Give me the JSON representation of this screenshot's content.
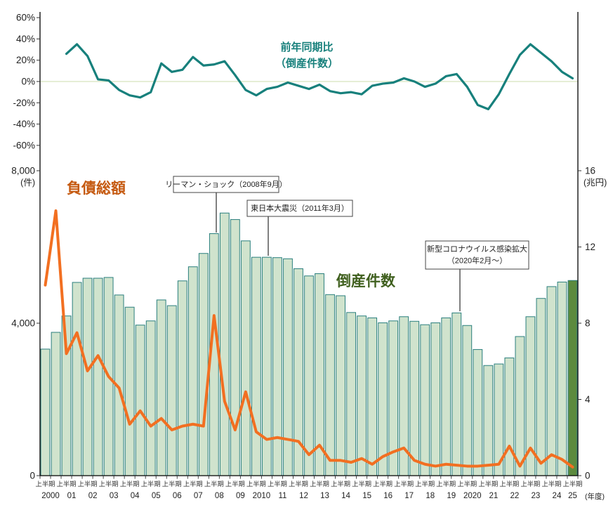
{
  "chart_data": {
    "type": "combo-bar-line",
    "description": "Half-yearly corporate bankruptcies (bars, left axis), total liabilities (orange line, right axis), and year-over-year change of bankruptcy count (teal line, percent axis)",
    "percent_axis": {
      "tick_labels": [
        "60%",
        "40%",
        "20%",
        "0%",
        "-20%",
        "-40%",
        "-60%"
      ],
      "tick_values": [
        60,
        40,
        20,
        0,
        -20,
        -40,
        -60
      ]
    },
    "count_axis": {
      "tick_labels": [
        "8,000",
        "4,000",
        "0"
      ],
      "tick_values": [
        8000,
        4000,
        0
      ],
      "unit_label": "(件)"
    },
    "trillion_axis": {
      "tick_labels": [
        "16",
        "12",
        "8",
        "4",
        "0"
      ],
      "tick_values": [
        16,
        12,
        8,
        4,
        0
      ],
      "unit_label": "(兆円)"
    },
    "x_axis": {
      "half_period_label": "上半期",
      "year_labels": [
        "2000",
        "01",
        "02",
        "03",
        "04",
        "05",
        "06",
        "07",
        "08",
        "09",
        "2010",
        "11",
        "12",
        "13",
        "14",
        "15",
        "16",
        "17",
        "18",
        "19",
        "2020",
        "21",
        "22",
        "23",
        "24",
        "25"
      ],
      "axis_unit_label": "(年度)"
    },
    "series": {
      "bankruptcy_count": {
        "label": "倒産件数",
        "label_color": "#40601f",
        "bar_fill": "#d0e3cd",
        "bar_stroke": "#2a7f7d",
        "last_bar_fill": "#5c8a3e",
        "start_period": "2000上半期",
        "values": [
          3320,
          3760,
          4190,
          5070,
          5180,
          5180,
          5200,
          4740,
          4420,
          3950,
          4060,
          4610,
          4460,
          5110,
          5480,
          5830,
          6350,
          6890,
          6720,
          6160,
          5730,
          5730,
          5720,
          5690,
          5430,
          5240,
          5300,
          4750,
          4720,
          4280,
          4190,
          4140,
          4010,
          4060,
          4170,
          4050,
          3960,
          4010,
          4140,
          4270,
          3940,
          3310,
          2890,
          2930,
          3090,
          3650,
          4170,
          4650,
          4960,
          5080,
          5120
        ]
      },
      "total_liabilities": {
        "label": "負債総額",
        "label_color": "#c55a11",
        "line_color": "#f26f21",
        "unit": "兆円",
        "start_period": "2000上半期",
        "values": [
          10.0,
          13.9,
          6.4,
          7.5,
          5.5,
          6.3,
          5.2,
          4.6,
          2.7,
          3.4,
          2.6,
          3.0,
          2.4,
          2.6,
          2.7,
          2.6,
          8.4,
          3.9,
          2.4,
          4.4,
          2.3,
          1.9,
          2.0,
          1.9,
          1.8,
          1.1,
          1.6,
          0.8,
          0.8,
          0.7,
          0.9,
          0.6,
          1.0,
          1.25,
          1.45,
          0.8,
          0.6,
          0.5,
          0.6,
          0.55,
          0.5,
          0.5,
          0.55,
          0.6,
          1.55,
          0.5,
          1.45,
          0.65,
          1.1,
          0.85,
          0.45
        ]
      },
      "yoy_change": {
        "label_line1": "前年同期比",
        "label_line2": "（倒産件数）",
        "line_color": "#17807c",
        "unit": "%",
        "start_period": "2001上半期",
        "values": [
          26,
          35,
          24,
          2,
          1,
          -8,
          -13,
          -15,
          -10,
          17,
          9,
          11,
          23,
          15,
          16,
          19,
          6,
          -8,
          -13,
          -7,
          -5,
          -1,
          -4,
          -7,
          -3,
          -9,
          -11,
          -10,
          -12,
          -4,
          -2,
          -1,
          3,
          0,
          -5,
          -2,
          5,
          7,
          -5,
          -22,
          -26,
          -12,
          7,
          25,
          35,
          27,
          19,
          9,
          3
        ]
      }
    },
    "annotations": [
      {
        "lines": [
          "リーマン・ショック（2008年9月）"
        ],
        "points_to": "2008下半期"
      },
      {
        "lines": [
          "東日本大震災（2011年3月）"
        ],
        "points_to": "2011上半期"
      },
      {
        "lines": [
          "新型コロナウイルス感染拡大",
          "（2020年2月～）"
        ],
        "points_to": "2019下半期"
      }
    ],
    "layout_hints": {
      "zero_gridline_color": "#e6eed6",
      "axis_color": "#000000"
    }
  }
}
